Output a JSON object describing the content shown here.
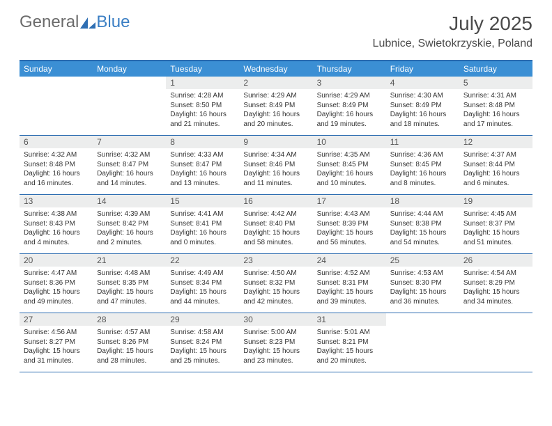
{
  "brand": {
    "part1": "General",
    "part2": "Blue"
  },
  "title": {
    "month_year": "July 2025",
    "location": "Lubnice, Swietokrzyskie, Poland"
  },
  "colors": {
    "header_bar": "#3b8fd4",
    "rule": "#2a6bb0",
    "daynum_bg": "#eceded",
    "text": "#333333",
    "title_text": "#4a4a4a",
    "logo_gray": "#6b6b6b",
    "logo_blue": "#3b7fc4"
  },
  "weekdays": [
    "Sunday",
    "Monday",
    "Tuesday",
    "Wednesday",
    "Thursday",
    "Friday",
    "Saturday"
  ],
  "weeks": [
    [
      {
        "n": "",
        "sr": "",
        "ss": "",
        "dl": ""
      },
      {
        "n": "",
        "sr": "",
        "ss": "",
        "dl": ""
      },
      {
        "n": "1",
        "sr": "Sunrise: 4:28 AM",
        "ss": "Sunset: 8:50 PM",
        "dl": "Daylight: 16 hours and 21 minutes."
      },
      {
        "n": "2",
        "sr": "Sunrise: 4:29 AM",
        "ss": "Sunset: 8:49 PM",
        "dl": "Daylight: 16 hours and 20 minutes."
      },
      {
        "n": "3",
        "sr": "Sunrise: 4:29 AM",
        "ss": "Sunset: 8:49 PM",
        "dl": "Daylight: 16 hours and 19 minutes."
      },
      {
        "n": "4",
        "sr": "Sunrise: 4:30 AM",
        "ss": "Sunset: 8:49 PM",
        "dl": "Daylight: 16 hours and 18 minutes."
      },
      {
        "n": "5",
        "sr": "Sunrise: 4:31 AM",
        "ss": "Sunset: 8:48 PM",
        "dl": "Daylight: 16 hours and 17 minutes."
      }
    ],
    [
      {
        "n": "6",
        "sr": "Sunrise: 4:32 AM",
        "ss": "Sunset: 8:48 PM",
        "dl": "Daylight: 16 hours and 16 minutes."
      },
      {
        "n": "7",
        "sr": "Sunrise: 4:32 AM",
        "ss": "Sunset: 8:47 PM",
        "dl": "Daylight: 16 hours and 14 minutes."
      },
      {
        "n": "8",
        "sr": "Sunrise: 4:33 AM",
        "ss": "Sunset: 8:47 PM",
        "dl": "Daylight: 16 hours and 13 minutes."
      },
      {
        "n": "9",
        "sr": "Sunrise: 4:34 AM",
        "ss": "Sunset: 8:46 PM",
        "dl": "Daylight: 16 hours and 11 minutes."
      },
      {
        "n": "10",
        "sr": "Sunrise: 4:35 AM",
        "ss": "Sunset: 8:45 PM",
        "dl": "Daylight: 16 hours and 10 minutes."
      },
      {
        "n": "11",
        "sr": "Sunrise: 4:36 AM",
        "ss": "Sunset: 8:45 PM",
        "dl": "Daylight: 16 hours and 8 minutes."
      },
      {
        "n": "12",
        "sr": "Sunrise: 4:37 AM",
        "ss": "Sunset: 8:44 PM",
        "dl": "Daylight: 16 hours and 6 minutes."
      }
    ],
    [
      {
        "n": "13",
        "sr": "Sunrise: 4:38 AM",
        "ss": "Sunset: 8:43 PM",
        "dl": "Daylight: 16 hours and 4 minutes."
      },
      {
        "n": "14",
        "sr": "Sunrise: 4:39 AM",
        "ss": "Sunset: 8:42 PM",
        "dl": "Daylight: 16 hours and 2 minutes."
      },
      {
        "n": "15",
        "sr": "Sunrise: 4:41 AM",
        "ss": "Sunset: 8:41 PM",
        "dl": "Daylight: 16 hours and 0 minutes."
      },
      {
        "n": "16",
        "sr": "Sunrise: 4:42 AM",
        "ss": "Sunset: 8:40 PM",
        "dl": "Daylight: 15 hours and 58 minutes."
      },
      {
        "n": "17",
        "sr": "Sunrise: 4:43 AM",
        "ss": "Sunset: 8:39 PM",
        "dl": "Daylight: 15 hours and 56 minutes."
      },
      {
        "n": "18",
        "sr": "Sunrise: 4:44 AM",
        "ss": "Sunset: 8:38 PM",
        "dl": "Daylight: 15 hours and 54 minutes."
      },
      {
        "n": "19",
        "sr": "Sunrise: 4:45 AM",
        "ss": "Sunset: 8:37 PM",
        "dl": "Daylight: 15 hours and 51 minutes."
      }
    ],
    [
      {
        "n": "20",
        "sr": "Sunrise: 4:47 AM",
        "ss": "Sunset: 8:36 PM",
        "dl": "Daylight: 15 hours and 49 minutes."
      },
      {
        "n": "21",
        "sr": "Sunrise: 4:48 AM",
        "ss": "Sunset: 8:35 PM",
        "dl": "Daylight: 15 hours and 47 minutes."
      },
      {
        "n": "22",
        "sr": "Sunrise: 4:49 AM",
        "ss": "Sunset: 8:34 PM",
        "dl": "Daylight: 15 hours and 44 minutes."
      },
      {
        "n": "23",
        "sr": "Sunrise: 4:50 AM",
        "ss": "Sunset: 8:32 PM",
        "dl": "Daylight: 15 hours and 42 minutes."
      },
      {
        "n": "24",
        "sr": "Sunrise: 4:52 AM",
        "ss": "Sunset: 8:31 PM",
        "dl": "Daylight: 15 hours and 39 minutes."
      },
      {
        "n": "25",
        "sr": "Sunrise: 4:53 AM",
        "ss": "Sunset: 8:30 PM",
        "dl": "Daylight: 15 hours and 36 minutes."
      },
      {
        "n": "26",
        "sr": "Sunrise: 4:54 AM",
        "ss": "Sunset: 8:29 PM",
        "dl": "Daylight: 15 hours and 34 minutes."
      }
    ],
    [
      {
        "n": "27",
        "sr": "Sunrise: 4:56 AM",
        "ss": "Sunset: 8:27 PM",
        "dl": "Daylight: 15 hours and 31 minutes."
      },
      {
        "n": "28",
        "sr": "Sunrise: 4:57 AM",
        "ss": "Sunset: 8:26 PM",
        "dl": "Daylight: 15 hours and 28 minutes."
      },
      {
        "n": "29",
        "sr": "Sunrise: 4:58 AM",
        "ss": "Sunset: 8:24 PM",
        "dl": "Daylight: 15 hours and 25 minutes."
      },
      {
        "n": "30",
        "sr": "Sunrise: 5:00 AM",
        "ss": "Sunset: 8:23 PM",
        "dl": "Daylight: 15 hours and 23 minutes."
      },
      {
        "n": "31",
        "sr": "Sunrise: 5:01 AM",
        "ss": "Sunset: 8:21 PM",
        "dl": "Daylight: 15 hours and 20 minutes."
      },
      {
        "n": "",
        "sr": "",
        "ss": "",
        "dl": ""
      },
      {
        "n": "",
        "sr": "",
        "ss": "",
        "dl": ""
      }
    ]
  ]
}
